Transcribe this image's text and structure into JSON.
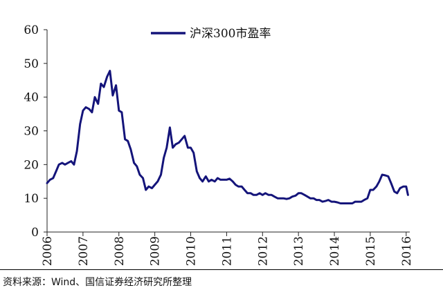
{
  "chart_data": {
    "type": "line",
    "series": [
      {
        "name": "沪深300市盈率",
        "x": [
          2006.0,
          2006.08,
          2006.17,
          2006.25,
          2006.33,
          2006.42,
          2006.5,
          2006.58,
          2006.67,
          2006.75,
          2006.83,
          2006.92,
          2007.0,
          2007.08,
          2007.17,
          2007.25,
          2007.33,
          2007.42,
          2007.5,
          2007.58,
          2007.67,
          2007.75,
          2007.83,
          2007.92,
          2008.0,
          2008.08,
          2008.17,
          2008.25,
          2008.33,
          2008.42,
          2008.5,
          2008.58,
          2008.67,
          2008.75,
          2008.83,
          2008.92,
          2009.0,
          2009.08,
          2009.17,
          2009.25,
          2009.33,
          2009.42,
          2009.5,
          2009.58,
          2009.67,
          2009.75,
          2009.83,
          2009.92,
          2010.0,
          2010.08,
          2010.17,
          2010.25,
          2010.33,
          2010.42,
          2010.5,
          2010.58,
          2010.67,
          2010.75,
          2010.83,
          2010.92,
          2011.0,
          2011.08,
          2011.17,
          2011.25,
          2011.33,
          2011.42,
          2011.5,
          2011.58,
          2011.67,
          2011.75,
          2011.83,
          2011.92,
          2012.0,
          2012.08,
          2012.17,
          2012.25,
          2012.33,
          2012.42,
          2012.5,
          2012.58,
          2012.67,
          2012.75,
          2012.83,
          2012.92,
          2013.0,
          2013.08,
          2013.17,
          2013.25,
          2013.33,
          2013.42,
          2013.5,
          2013.58,
          2013.67,
          2013.75,
          2013.83,
          2013.92,
          2014.0,
          2014.08,
          2014.17,
          2014.25,
          2014.33,
          2014.42,
          2014.5,
          2014.58,
          2014.67,
          2014.75,
          2014.83,
          2014.92,
          2015.0,
          2015.08,
          2015.17,
          2015.25,
          2015.33,
          2015.42,
          2015.5,
          2015.58,
          2015.67,
          2015.75,
          2015.83,
          2015.92,
          2016.0,
          2016.05
        ],
        "values": [
          14.5,
          15.5,
          16.0,
          18.0,
          20.0,
          20.5,
          20.0,
          20.5,
          21.0,
          20.0,
          24.0,
          32.0,
          36.0,
          37.0,
          36.5,
          35.5,
          40.0,
          38.0,
          44.0,
          43.0,
          46.0,
          47.8,
          40.5,
          43.5,
          36.0,
          35.5,
          27.5,
          27.0,
          24.5,
          20.5,
          19.5,
          17.0,
          16.0,
          12.5,
          13.5,
          13.0,
          14.0,
          15.0,
          17.0,
          22.0,
          25.0,
          31.0,
          25.0,
          26.0,
          26.5,
          27.5,
          28.5,
          25.0,
          25.0,
          23.5,
          18.0,
          16.0,
          15.0,
          16.5,
          15.0,
          15.5,
          15.0,
          16.0,
          15.5,
          15.5,
          15.5,
          15.8,
          15.0,
          14.0,
          13.5,
          13.5,
          12.5,
          11.5,
          11.5,
          11.0,
          11.0,
          11.5,
          11.0,
          11.5,
          11.0,
          11.0,
          10.5,
          10.0,
          10.0,
          10.0,
          9.8,
          10.0,
          10.5,
          10.8,
          11.5,
          11.5,
          11.0,
          10.5,
          10.0,
          10.0,
          9.5,
          9.5,
          9.0,
          9.2,
          9.5,
          9.0,
          9.0,
          8.8,
          8.5,
          8.5,
          8.5,
          8.5,
          8.5,
          9.0,
          9.0,
          9.0,
          9.5,
          10.0,
          12.5,
          12.5,
          13.5,
          15.0,
          17.0,
          16.8,
          16.5,
          14.5,
          12.0,
          11.5,
          13.0,
          13.5,
          13.5,
          11.0
        ]
      }
    ],
    "x_ticks": [
      "2006",
      "2007",
      "2008",
      "2009",
      "2010",
      "2011",
      "2012",
      "2013",
      "2014",
      "2015",
      "2016"
    ],
    "y_ticks": [
      "0",
      "10",
      "20",
      "30",
      "40",
      "50",
      "60"
    ],
    "xlim": [
      2006,
      2016.1
    ],
    "ylim": [
      0,
      60
    ],
    "grid": false,
    "legend_position": "top",
    "line_color": "#14147a"
  },
  "source": "资料来源：Wind、国信证券经济研究所整理"
}
